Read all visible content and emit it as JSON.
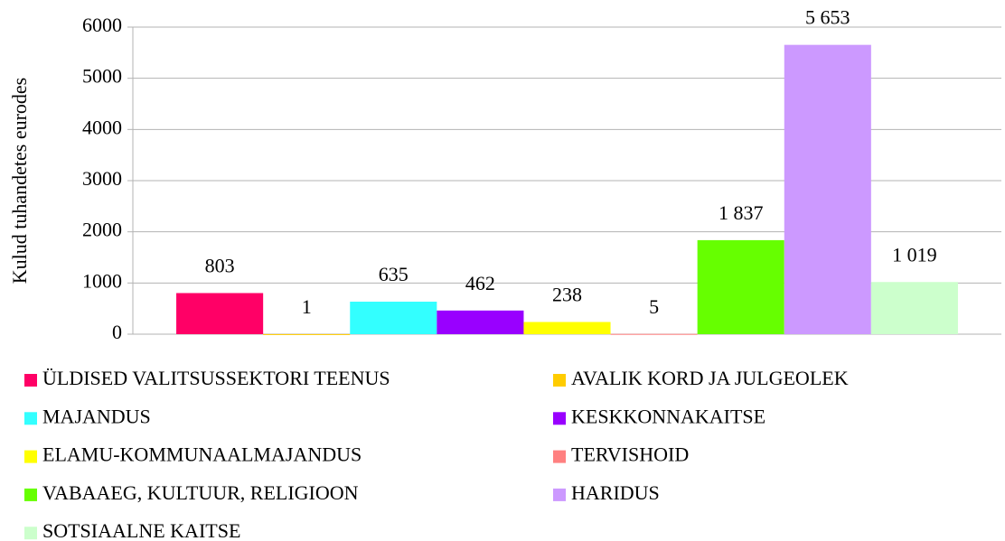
{
  "chart_data": {
    "type": "bar",
    "y_label": "Kulud tuhandetes eurodes",
    "categories": [
      "ÜLDISED VALITSUSSEKTORI TEENUS",
      "AVALIK KORD JA JULGEOLEK",
      "MAJANDUS",
      "KESKKONNAKAITSE",
      "ELAMU-KOMMUNAALMAJANDUS",
      "TERVISHOID",
      "VABAAEG, KULTUUR, RELIGIOON",
      "HARIDUS",
      "SOTSIAALNE KAITSE"
    ],
    "values": [
      803,
      1,
      635,
      462,
      238,
      5,
      1837,
      5653,
      1019
    ],
    "value_labels": [
      "803",
      "1",
      "635",
      "462",
      "238",
      "5",
      "1 837",
      "5 653",
      "1 019"
    ],
    "colors": [
      "#ff0066",
      "#ffcc00",
      "#33ffff",
      "#9900ff",
      "#ffff00",
      "#ff8080",
      "#66ff00",
      "#cc99ff",
      "#ccffcc"
    ],
    "ylim": [
      0,
      6000
    ],
    "yticks": [
      0,
      1000,
      2000,
      3000,
      4000,
      5000,
      6000
    ],
    "grid": true,
    "legend": "bottom"
  }
}
